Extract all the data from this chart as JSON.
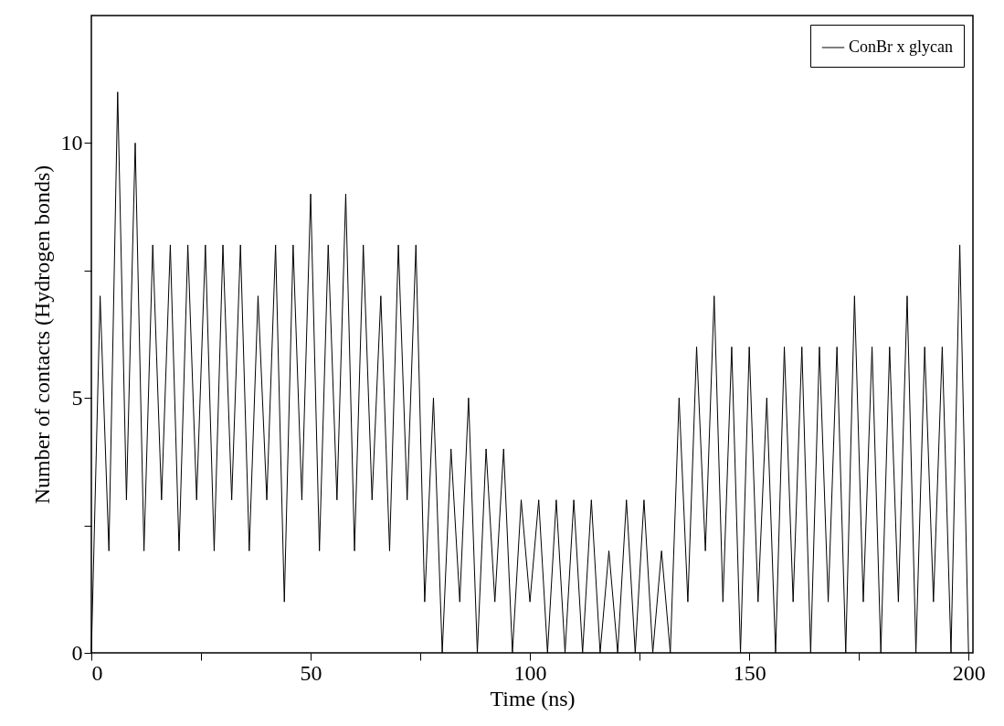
{
  "chart_data": {
    "type": "line",
    "xlabel": "Time (ns)",
    "ylabel": "Number of contacts (Hydrogen bonds)",
    "x": [
      0,
      2,
      4,
      6,
      8,
      10,
      12,
      14,
      16,
      18,
      20,
      22,
      24,
      26,
      28,
      30,
      32,
      34,
      36,
      38,
      40,
      42,
      44,
      46,
      48,
      50,
      52,
      54,
      56,
      58,
      60,
      62,
      64,
      66,
      68,
      70,
      72,
      74,
      76,
      78,
      80,
      82,
      84,
      86,
      88,
      90,
      92,
      94,
      96,
      98,
      100,
      102,
      104,
      106,
      108,
      110,
      112,
      114,
      116,
      118,
      120,
      122,
      124,
      126,
      128,
      130,
      132,
      134,
      136,
      138,
      140,
      142,
      144,
      146,
      148,
      150,
      152,
      154,
      156,
      158,
      160,
      162,
      164,
      166,
      168,
      170,
      172,
      174,
      176,
      178,
      180,
      182,
      184,
      186,
      188,
      190,
      192,
      194,
      196,
      198,
      200
    ],
    "series": [
      {
        "name": "ConBr x glycan",
        "color": "#000000",
        "values": [
          0,
          7,
          2,
          11,
          3,
          10,
          2,
          8,
          3,
          8,
          2,
          8,
          3,
          8,
          2,
          8,
          3,
          8,
          2,
          7,
          3,
          8,
          1,
          8,
          3,
          9,
          2,
          8,
          3,
          9,
          2,
          8,
          3,
          7,
          2,
          8,
          3,
          8,
          1,
          5,
          0,
          4,
          1,
          5,
          0,
          4,
          1,
          4,
          0,
          3,
          1,
          3,
          0,
          3,
          0,
          3,
          0,
          3,
          0,
          2,
          0,
          3,
          0,
          3,
          0,
          2,
          0,
          5,
          1,
          6,
          2,
          7,
          1,
          6,
          0,
          6,
          1,
          5,
          0,
          6,
          1,
          6,
          0,
          6,
          1,
          6,
          0,
          7,
          1,
          6,
          0,
          6,
          1,
          7,
          0,
          6,
          1,
          6,
          0,
          8,
          0
        ]
      }
    ],
    "xlim": [
      0,
      201
    ],
    "xticks": [
      0,
      {
        "value": 25,
        "label": null
      },
      50,
      {
        "value": 75,
        "label": null
      },
      100,
      {
        "value": 125,
        "label": null
      },
      150,
      {
        "value": 175,
        "label": null
      },
      200
    ],
    "ylim": [
      0,
      12.5
    ],
    "yticks": [
      0,
      {
        "value": 2.5,
        "label": null
      },
      5,
      {
        "value": 7.5,
        "label": null
      },
      10
    ],
    "grid": false,
    "legend": "top right",
    "line_style": "solid",
    "marker": "none"
  }
}
